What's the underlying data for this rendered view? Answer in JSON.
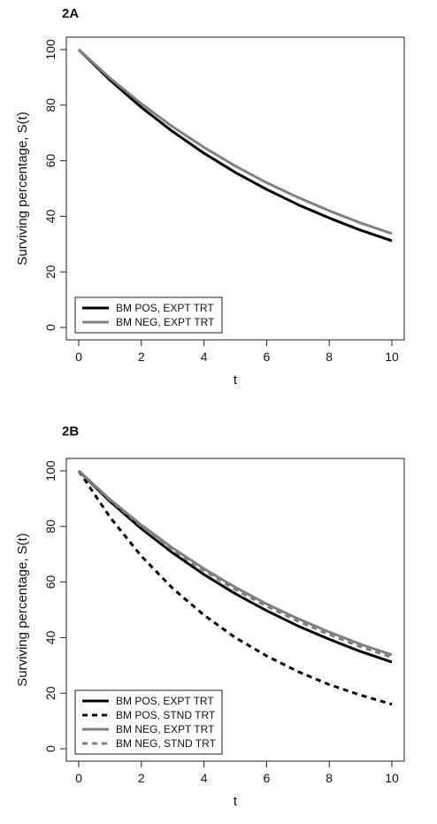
{
  "chart_data": [
    {
      "type": "line",
      "panel_label": "2A",
      "xlabel": "t",
      "ylabel": "Surviving percentage, S(t)",
      "xlim": [
        0,
        10
      ],
      "ylim": [
        0,
        100
      ],
      "xticks": [
        "0",
        "2",
        "4",
        "6",
        "8",
        "10"
      ],
      "yticks": [
        "0",
        "20",
        "40",
        "60",
        "80",
        "100"
      ],
      "grid": false,
      "legend_position": "bottom-left",
      "x": [
        0,
        1,
        2,
        3,
        4,
        5,
        6,
        7,
        8,
        9,
        10
      ],
      "series": [
        {
          "name": "BM POS, EXPT TRT",
          "color": "#000000",
          "dash": "solid",
          "values": [
            100,
            89.0,
            79.2,
            70.5,
            62.7,
            55.8,
            49.7,
            44.2,
            39.4,
            35.0,
            31.2
          ]
        },
        {
          "name": "BM NEG, EXPT TRT",
          "color": "#808080",
          "dash": "solid",
          "values": [
            100,
            89.7,
            80.5,
            72.2,
            64.8,
            58.1,
            52.1,
            46.8,
            42.0,
            37.6,
            33.8
          ]
        }
      ]
    },
    {
      "type": "line",
      "panel_label": "2B",
      "xlabel": "t",
      "ylabel": "Surviving percentage, S(t)",
      "xlim": [
        0,
        10
      ],
      "ylim": [
        0,
        100
      ],
      "xticks": [
        "0",
        "2",
        "4",
        "6",
        "8",
        "10"
      ],
      "yticks": [
        "0",
        "20",
        "40",
        "60",
        "80",
        "100"
      ],
      "grid": false,
      "legend_position": "bottom-left",
      "x": [
        0,
        1,
        2,
        3,
        4,
        5,
        6,
        7,
        8,
        9,
        10
      ],
      "series": [
        {
          "name": "BM POS, EXPT TRT",
          "color": "#000000",
          "dash": "solid",
          "values": [
            100,
            89.0,
            79.2,
            70.5,
            62.7,
            55.8,
            49.7,
            44.2,
            39.4,
            35.0,
            31.2
          ]
        },
        {
          "name": "BM POS, STND TRT",
          "color": "#000000",
          "dash": "dashed",
          "values": [
            100,
            83.3,
            69.3,
            57.7,
            48.1,
            40.0,
            33.4,
            27.8,
            23.1,
            19.3,
            16.0
          ]
        },
        {
          "name": "BM NEG, EXPT TRT",
          "color": "#808080",
          "dash": "solid",
          "values": [
            100,
            89.7,
            80.5,
            72.2,
            64.8,
            58.1,
            52.1,
            46.8,
            42.0,
            37.6,
            33.8
          ]
        },
        {
          "name": "BM NEG, STND TRT",
          "color": "#808080",
          "dash": "dashed",
          "values": [
            100,
            89.5,
            80.1,
            71.6,
            64.1,
            57.3,
            51.3,
            45.9,
            41.1,
            36.7,
            32.9
          ]
        }
      ]
    }
  ]
}
